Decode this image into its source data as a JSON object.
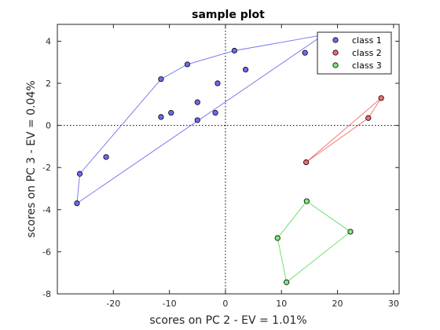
{
  "chart_data": {
    "type": "scatter",
    "title": "sample plot",
    "xlabel": "scores on PC 2 - EV = 1.01%",
    "ylabel": "scores on PC 3 - EV = 0.04%",
    "xlim": [
      -30,
      31
    ],
    "ylim": [
      -8,
      4.8
    ],
    "xticks": [
      -20,
      -10,
      0,
      10,
      20,
      30
    ],
    "yticks": [
      -8,
      -6,
      -4,
      -2,
      0,
      2,
      4
    ],
    "reference_lines": {
      "x": 0,
      "y": 0,
      "style": "dotted"
    },
    "legend_position": "top-right",
    "series": [
      {
        "name": "class 1",
        "color": "#6b6bf0",
        "hull_color": "#7070ee",
        "points": [
          [
            -26.5,
            -3.7
          ],
          [
            -26.0,
            -2.3
          ],
          [
            -21.3,
            -1.5
          ],
          [
            -11.5,
            2.2
          ],
          [
            -11.5,
            0.4
          ],
          [
            -9.7,
            0.6
          ],
          [
            -6.8,
            2.9
          ],
          [
            -5.0,
            1.1
          ],
          [
            -5.0,
            0.25
          ],
          [
            -1.8,
            0.6
          ],
          [
            -1.4,
            2.0
          ],
          [
            1.6,
            3.55
          ],
          [
            3.6,
            2.65
          ],
          [
            14.2,
            3.45
          ],
          [
            17.5,
            4.3
          ]
        ],
        "hull": [
          [
            -26.5,
            -3.7
          ],
          [
            -26.0,
            -2.3
          ],
          [
            -11.5,
            2.2
          ],
          [
            -6.8,
            2.9
          ],
          [
            1.6,
            3.55
          ],
          [
            17.5,
            4.3
          ],
          [
            -26.5,
            -3.7
          ]
        ]
      },
      {
        "name": "class 2",
        "color": "#ef6b6b",
        "hull_color": "#f07070",
        "points": [
          [
            14.4,
            -1.75
          ],
          [
            25.5,
            0.35
          ],
          [
            27.8,
            1.3
          ]
        ],
        "hull": [
          [
            14.4,
            -1.75
          ],
          [
            25.5,
            0.35
          ],
          [
            27.8,
            1.3
          ],
          [
            14.4,
            -1.75
          ]
        ]
      },
      {
        "name": "class 3",
        "color": "#7ae87a",
        "hull_color": "#5fde5f",
        "points": [
          [
            14.5,
            -3.6
          ],
          [
            22.3,
            -5.05
          ],
          [
            9.3,
            -5.35
          ],
          [
            10.9,
            -7.45
          ]
        ],
        "hull": [
          [
            14.5,
            -3.6
          ],
          [
            22.3,
            -5.05
          ],
          [
            10.9,
            -7.45
          ],
          [
            9.3,
            -5.35
          ],
          [
            14.5,
            -3.6
          ]
        ]
      }
    ]
  }
}
